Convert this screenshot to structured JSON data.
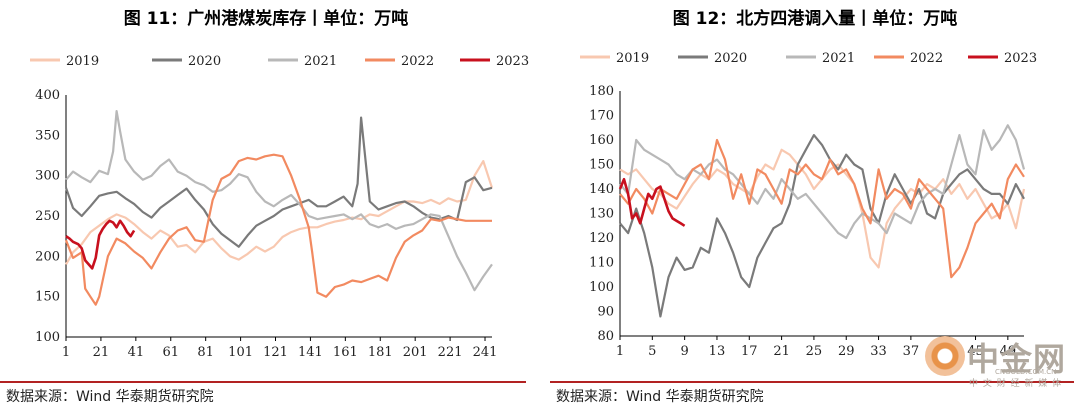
{
  "chart_data": [
    {
      "type": "line",
      "title": "图 11：广州港煤炭库存丨单位：万吨",
      "source": "数据来源：Wind 华泰期货研究院",
      "xticks": [
        "1",
        "21",
        "41",
        "61",
        "81",
        "101",
        "121",
        "141",
        "161",
        "181",
        "201",
        "221",
        "241"
      ],
      "xlim": [
        1,
        245
      ],
      "ylim": [
        100,
        400
      ],
      "yticks": [
        "100",
        "150",
        "200",
        "250",
        "300",
        "350",
        "400"
      ],
      "legend": "top",
      "series": [
        {
          "name": "2019",
          "color": "#f8c8b0",
          "x": [
            1,
            5,
            10,
            15,
            20,
            25,
            30,
            35,
            40,
            45,
            50,
            55,
            60,
            65,
            70,
            75,
            80,
            85,
            90,
            95,
            100,
            105,
            110,
            115,
            120,
            125,
            130,
            135,
            140,
            145,
            150,
            155,
            160,
            165,
            170,
            175,
            180,
            185,
            190,
            195,
            200,
            205,
            210,
            215,
            220,
            225,
            230,
            235,
            240,
            245
          ],
          "y": [
            190,
            205,
            215,
            230,
            238,
            246,
            252,
            248,
            240,
            230,
            222,
            232,
            226,
            212,
            214,
            205,
            218,
            222,
            210,
            200,
            196,
            203,
            212,
            206,
            212,
            224,
            230,
            234,
            236,
            236,
            240,
            243,
            245,
            248,
            246,
            252,
            250,
            256,
            262,
            268,
            268,
            266,
            270,
            265,
            272,
            268,
            270,
            300,
            318,
            285
          ]
        },
        {
          "name": "2020",
          "color": "#7a7a7a",
          "x": [
            1,
            5,
            10,
            15,
            20,
            25,
            30,
            35,
            40,
            45,
            50,
            55,
            60,
            65,
            70,
            75,
            80,
            85,
            90,
            95,
            100,
            105,
            110,
            115,
            120,
            125,
            130,
            135,
            140,
            145,
            150,
            155,
            160,
            165,
            168,
            170,
            175,
            180,
            185,
            190,
            195,
            200,
            205,
            210,
            215,
            220,
            225,
            230,
            235,
            240,
            245
          ],
          "y": [
            285,
            260,
            250,
            262,
            275,
            278,
            280,
            272,
            265,
            255,
            248,
            260,
            268,
            276,
            284,
            270,
            258,
            240,
            228,
            220,
            212,
            226,
            238,
            244,
            250,
            258,
            262,
            266,
            270,
            262,
            262,
            268,
            274,
            262,
            290,
            372,
            268,
            258,
            262,
            266,
            268,
            262,
            254,
            248,
            246,
            250,
            245,
            292,
            298,
            282,
            285
          ]
        },
        {
          "name": "2021",
          "color": "#b8b8b8",
          "x": [
            1,
            5,
            10,
            15,
            20,
            25,
            28,
            30,
            32,
            35,
            40,
            45,
            50,
            55,
            60,
            65,
            70,
            75,
            80,
            85,
            90,
            95,
            100,
            105,
            110,
            115,
            120,
            125,
            130,
            135,
            140,
            145,
            150,
            155,
            160,
            165,
            170,
            175,
            180,
            185,
            190,
            195,
            200,
            205,
            210,
            215,
            220,
            225,
            230,
            235,
            240,
            245
          ],
          "y": [
            295,
            305,
            298,
            292,
            306,
            302,
            330,
            380,
            355,
            320,
            305,
            295,
            300,
            312,
            320,
            305,
            300,
            292,
            288,
            280,
            282,
            290,
            302,
            298,
            280,
            268,
            262,
            270,
            276,
            264,
            250,
            246,
            248,
            250,
            252,
            246,
            252,
            240,
            236,
            240,
            234,
            238,
            240,
            246,
            252,
            250,
            225,
            200,
            180,
            158,
            175,
            190
          ]
        },
        {
          "name": "2022",
          "color": "#f28a60",
          "x": [
            1,
            5,
            10,
            12,
            15,
            18,
            20,
            25,
            30,
            35,
            40,
            45,
            50,
            55,
            60,
            65,
            70,
            75,
            80,
            85,
            90,
            95,
            100,
            105,
            110,
            115,
            120,
            125,
            130,
            135,
            140,
            142,
            145,
            150,
            155,
            160,
            165,
            170,
            175,
            180,
            185,
            190,
            195,
            200,
            205,
            210,
            215,
            220,
            225,
            230,
            235,
            240,
            245
          ],
          "y": [
            220,
            198,
            205,
            160,
            150,
            140,
            150,
            200,
            222,
            216,
            206,
            198,
            185,
            205,
            222,
            232,
            236,
            220,
            218,
            270,
            296,
            302,
            318,
            322,
            320,
            324,
            326,
            324,
            300,
            270,
            236,
            205,
            155,
            150,
            162,
            165,
            170,
            168,
            172,
            176,
            170,
            198,
            218,
            226,
            232,
            246,
            244,
            248,
            246,
            244,
            244,
            244,
            244
          ]
        },
        {
          "name": "2023",
          "color": "#c8101e",
          "x": [
            1,
            3,
            5,
            8,
            10,
            12,
            14,
            16,
            18,
            20,
            22,
            24,
            26,
            28,
            30,
            32,
            34,
            36,
            38,
            40
          ],
          "y": [
            225,
            222,
            218,
            215,
            210,
            195,
            190,
            185,
            198,
            226,
            234,
            240,
            244,
            242,
            236,
            244,
            238,
            230,
            225,
            232
          ]
        }
      ]
    },
    {
      "type": "line",
      "title": "图 12：北方四港调入量丨单位：万吨",
      "source": "数据来源：Wind 华泰期货研究院",
      "xticks": [
        "1",
        "5",
        "9",
        "13",
        "17",
        "21",
        "25",
        "29",
        "33",
        "37",
        "41",
        "45",
        "49"
      ],
      "xlim": [
        1,
        51
      ],
      "ylim": [
        80,
        180
      ],
      "yticks": [
        "80",
        "90",
        "100",
        "110",
        "120",
        "130",
        "140",
        "150",
        "160",
        "170",
        "180"
      ],
      "legend": "top",
      "series": [
        {
          "name": "2019",
          "color": "#f8c8b0",
          "x": [
            1,
            2,
            3,
            4,
            5,
            6,
            7,
            8,
            9,
            10,
            11,
            12,
            13,
            14,
            15,
            16,
            17,
            18,
            19,
            20,
            21,
            22,
            23,
            24,
            25,
            26,
            27,
            28,
            29,
            30,
            31,
            32,
            33,
            34,
            35,
            36,
            37,
            38,
            39,
            40,
            41,
            42,
            43,
            44,
            45,
            46,
            47,
            48,
            49,
            50,
            51
          ],
          "y": [
            148,
            146,
            148,
            144,
            140,
            138,
            134,
            132,
            137,
            142,
            146,
            144,
            148,
            146,
            142,
            140,
            138,
            145,
            150,
            148,
            156,
            154,
            150,
            146,
            140,
            144,
            148,
            150,
            146,
            142,
            130,
            112,
            108,
            126,
            132,
            136,
            140,
            138,
            142,
            140,
            144,
            138,
            142,
            136,
            140,
            134,
            128,
            130,
            134,
            124,
            140
          ]
        },
        {
          "name": "2020",
          "color": "#7a7a7a",
          "x": [
            1,
            2,
            3,
            4,
            5,
            6,
            7,
            8,
            9,
            10,
            11,
            12,
            13,
            14,
            15,
            16,
            17,
            18,
            19,
            20,
            21,
            22,
            23,
            24,
            25,
            26,
            27,
            28,
            29,
            30,
            31,
            32,
            33,
            34,
            35,
            36,
            37,
            38,
            39,
            40,
            41,
            42,
            43,
            44,
            45,
            46,
            47,
            48,
            49,
            50,
            51
          ],
          "y": [
            126,
            122,
            132,
            122,
            108,
            88,
            104,
            112,
            107,
            108,
            116,
            114,
            128,
            122,
            114,
            104,
            100,
            112,
            118,
            124,
            126,
            134,
            150,
            156,
            162,
            158,
            152,
            148,
            154,
            150,
            148,
            132,
            126,
            138,
            146,
            140,
            134,
            140,
            130,
            128,
            138,
            142,
            146,
            148,
            144,
            140,
            138,
            138,
            134,
            142,
            136
          ]
        },
        {
          "name": "2021",
          "color": "#b8b8b8",
          "x": [
            1,
            2,
            3,
            4,
            5,
            6,
            7,
            8,
            9,
            10,
            11,
            12,
            13,
            14,
            15,
            16,
            17,
            18,
            19,
            20,
            21,
            22,
            23,
            24,
            25,
            26,
            27,
            28,
            29,
            30,
            31,
            32,
            33,
            34,
            35,
            36,
            37,
            38,
            39,
            40,
            41,
            42,
            43,
            44,
            45,
            46,
            47,
            48,
            49,
            50,
            51
          ],
          "y": [
            142,
            138,
            160,
            156,
            154,
            152,
            150,
            146,
            144,
            148,
            146,
            150,
            152,
            148,
            146,
            142,
            138,
            134,
            140,
            136,
            144,
            140,
            136,
            138,
            134,
            130,
            126,
            122,
            120,
            126,
            130,
            128,
            126,
            122,
            130,
            128,
            126,
            134,
            138,
            140,
            138,
            150,
            162,
            150,
            146,
            164,
            156,
            160,
            166,
            160,
            148
          ]
        },
        {
          "name": "2022",
          "color": "#f28a60",
          "x": [
            1,
            2,
            3,
            4,
            5,
            6,
            7,
            8,
            9,
            10,
            11,
            12,
            13,
            14,
            15,
            16,
            17,
            18,
            19,
            20,
            21,
            22,
            23,
            24,
            25,
            26,
            27,
            28,
            29,
            30,
            31,
            32,
            33,
            34,
            35,
            36,
            37,
            38,
            39,
            40,
            41,
            42,
            43,
            44,
            45,
            46,
            47,
            48,
            49,
            50,
            51
          ],
          "y": [
            138,
            134,
            140,
            136,
            130,
            140,
            138,
            136,
            142,
            148,
            150,
            144,
            160,
            152,
            136,
            146,
            134,
            148,
            146,
            140,
            134,
            148,
            146,
            150,
            146,
            144,
            152,
            146,
            148,
            142,
            132,
            126,
            148,
            136,
            140,
            138,
            132,
            144,
            140,
            136,
            132,
            104,
            108,
            116,
            126,
            130,
            134,
            128,
            144,
            150,
            145
          ]
        },
        {
          "name": "2023",
          "color": "#c8101e",
          "x": [
            1,
            1.5,
            2,
            2.5,
            3,
            3.5,
            4,
            4.5,
            5,
            5.5,
            6,
            6.5,
            7,
            7.5,
            8,
            8.5,
            9
          ],
          "y": [
            140,
            144,
            138,
            128,
            130,
            126,
            132,
            138,
            136,
            140,
            141,
            136,
            131,
            128,
            127,
            126,
            125
          ]
        }
      ]
    }
  ],
  "watermark": {
    "text": "中金网",
    "sub": "中 文 财 经 新 媒 体",
    "url": "CNGOLD.COM.CN"
  }
}
